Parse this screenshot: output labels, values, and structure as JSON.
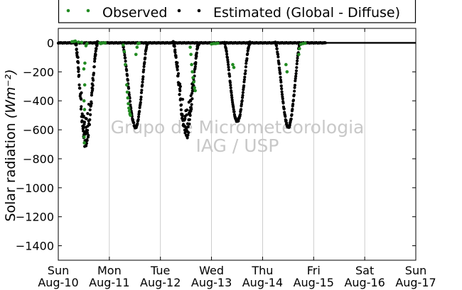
{
  "chart_data": {
    "type": "scatter",
    "ylabel": "Solar radiation",
    "ylabel_unit": "(Wm⁻²)",
    "ylim": [
      -1500,
      100
    ],
    "yticks": [
      0,
      -200,
      -400,
      -600,
      -800,
      -1000,
      -1200,
      -1400
    ],
    "xlim": [
      "2014-08-10",
      "2014-08-17"
    ],
    "xtick_labels": [
      {
        "day": "Sun",
        "date": "Aug-10"
      },
      {
        "day": "Mon",
        "date": "Aug-11"
      },
      {
        "day": "Tue",
        "date": "Aug-12"
      },
      {
        "day": "Wed",
        "date": "Aug-13"
      },
      {
        "day": "Thu",
        "date": "Aug-14"
      },
      {
        "day": "Fri",
        "date": "Aug-15"
      },
      {
        "day": "Sat",
        "date": "Aug-16"
      },
      {
        "day": "Sun",
        "date": "Aug-17"
      }
    ],
    "grid": "vertical",
    "legend_position": "top",
    "watermark": [
      "Grupo de Micrometeorologia",
      "IAG / USP"
    ],
    "series": [
      {
        "name": "Observed",
        "color": "#228b22",
        "points": [
          [
            "2014-08-10 06:30",
            8
          ],
          [
            "2014-08-10 07:30",
            10
          ],
          [
            "2014-08-10 08:00",
            12
          ],
          [
            "2014-08-10 09:30",
            5
          ],
          [
            "2014-08-10 11:00",
            3
          ],
          [
            "2014-08-10 12:00",
            -180
          ],
          [
            "2014-08-10 12:05",
            -400
          ],
          [
            "2014-08-10 12:10",
            -650
          ],
          [
            "2014-08-10 12:15",
            -690
          ],
          [
            "2014-08-10 12:20",
            -460
          ],
          [
            "2014-08-10 12:25",
            -290
          ],
          [
            "2014-08-10 12:30",
            -140
          ],
          [
            "2014-08-10 13:00",
            -20
          ],
          [
            "2014-08-10 13:30",
            -5
          ],
          [
            "2014-08-10 19:30",
            0
          ],
          [
            "2014-08-10 20:00",
            -5
          ],
          [
            "2014-08-10 21:00",
            0
          ],
          [
            "2014-08-10 22:00",
            0
          ],
          [
            "2014-08-11 06:30",
            -15
          ],
          [
            "2014-08-11 07:00",
            -60
          ],
          [
            "2014-08-11 07:30",
            -150
          ],
          [
            "2014-08-11 08:10",
            -290
          ],
          [
            "2014-08-11 08:25",
            -340
          ],
          [
            "2014-08-11 08:40",
            -380
          ],
          [
            "2014-08-11 08:55",
            -420
          ],
          [
            "2014-08-11 09:10",
            -450
          ],
          [
            "2014-08-11 09:25",
            -470
          ],
          [
            "2014-08-11 09:40",
            -490
          ],
          [
            "2014-08-11 09:55",
            -500
          ],
          [
            "2014-08-11 12:30",
            -80
          ],
          [
            "2014-08-11 13:00",
            -30
          ],
          [
            "2014-08-11 13:30",
            -5
          ],
          [
            "2014-08-11 14:00",
            -3
          ],
          [
            "2014-08-12 14:00",
            -30
          ],
          [
            "2014-08-12 14:20",
            -80
          ],
          [
            "2014-08-12 14:40",
            -150
          ],
          [
            "2014-08-12 15:00",
            -200
          ],
          [
            "2014-08-12 15:20",
            -240
          ],
          [
            "2014-08-12 15:40",
            -270
          ],
          [
            "2014-08-12 16:00",
            -310
          ],
          [
            "2014-08-12 16:20",
            -330
          ],
          [
            "2014-08-13 00:00",
            -8
          ],
          [
            "2014-08-13 01:00",
            -5
          ],
          [
            "2014-08-13 02:00",
            -5
          ],
          [
            "2014-08-13 03:00",
            -3
          ],
          [
            "2014-08-13 10:00",
            -150
          ],
          [
            "2014-08-13 10:30",
            -170
          ],
          [
            "2014-08-14 11:00",
            -150
          ],
          [
            "2014-08-14 11:30",
            -200
          ],
          [
            "2014-08-14 17:00",
            -80
          ],
          [
            "2014-08-14 17:20",
            -40
          ],
          [
            "2014-08-14 18:00",
            -10
          ],
          [
            "2014-08-14 19:00",
            -5
          ],
          [
            "2014-08-14 20:00",
            -3
          ]
        ]
      },
      {
        "name": "Estimated (Global - Diffuse)",
        "color": "#000000",
        "days": [
          {
            "start": "2014-08-10 08:00",
            "peak": "2014-08-10 12:45",
            "end": "2014-08-10 18:30",
            "min": -660,
            "noisy": true
          },
          {
            "start": "2014-08-11 06:00",
            "peak": "2014-08-11 12:20",
            "end": "2014-08-11 18:00",
            "min": -580
          },
          {
            "start": "2014-08-12 06:00",
            "peak": "2014-08-12 12:10",
            "end": "2014-08-12 18:00",
            "min": -600,
            "noisy": true
          },
          {
            "start": "2014-08-13 06:00",
            "peak": "2014-08-13 12:10",
            "end": "2014-08-13 18:00",
            "min": -540
          },
          {
            "start": "2014-08-14 06:00",
            "peak": "2014-08-14 12:10",
            "end": "2014-08-14 17:40",
            "min": -580
          }
        ],
        "baseline_until": "2014-08-15 06:00",
        "line_until": "2014-08-17 00:00"
      }
    ]
  }
}
